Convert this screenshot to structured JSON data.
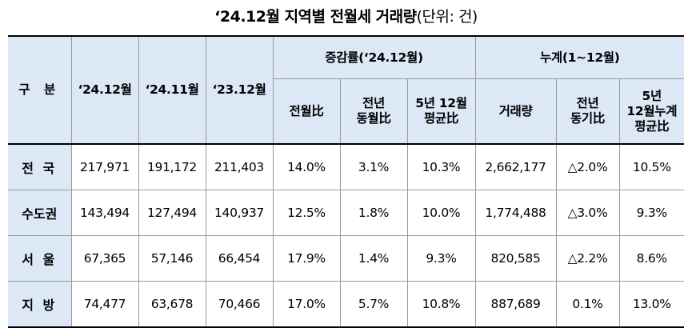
{
  "title": {
    "main": "‘24.12월 지역별 전월세 거래량",
    "unit": "(단위: 건)"
  },
  "header": {
    "category": "구 분",
    "col_2412": "‘24.12월",
    "col_2411": "‘24.11월",
    "col_2312": "‘23.12월",
    "group_change": "증감률(‘24.12월)",
    "group_cumulative": "누계(1~12월)",
    "mom": "전월比",
    "yoy_month": "전년\n동월比",
    "avg5_month": "5년 12월\n평균比",
    "volume": "거래량",
    "yoy_period": "전년\n동기比",
    "avg5_cum": "5년\n12월누계\n평균比"
  },
  "rows": [
    {
      "region": "전 국",
      "v2412": "217,971",
      "v2411": "191,172",
      "v2312": "211,403",
      "mom": "14.0%",
      "yoy": "3.1%",
      "avg5": "10.3%",
      "cum": "2,662,177",
      "cum_yoy": "△2.0%",
      "cum_avg5": "10.5%"
    },
    {
      "region": "수도권",
      "v2412": "143,494",
      "v2411": "127,494",
      "v2312": "140,937",
      "mom": "12.5%",
      "yoy": "1.8%",
      "avg5": "10.0%",
      "cum": "1,774,488",
      "cum_yoy": "△3.0%",
      "cum_avg5": "9.3%"
    },
    {
      "region": "서 울",
      "v2412": "67,365",
      "v2411": "57,146",
      "v2312": "66,454",
      "mom": "17.9%",
      "yoy": "1.4%",
      "avg5": "9.3%",
      "cum": "820,585",
      "cum_yoy": "△2.2%",
      "cum_avg5": "8.6%"
    },
    {
      "region": "지 방",
      "v2412": "74,477",
      "v2411": "63,678",
      "v2312": "70,466",
      "mom": "17.0%",
      "yoy": "5.7%",
      "avg5": "10.8%",
      "cum": "887,689",
      "cum_yoy": "0.1%",
      "cum_avg5": "13.0%"
    }
  ]
}
